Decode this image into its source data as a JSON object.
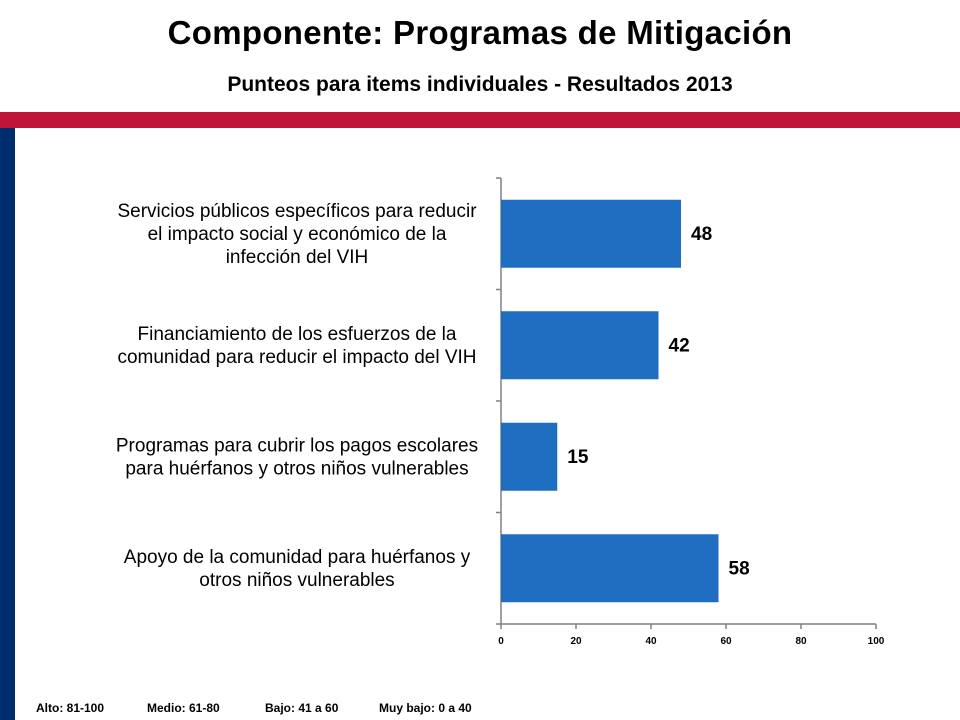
{
  "header": {
    "title": "Componente: Programas de Mitigación",
    "subtitle": "Punteos para items individuales - Resultados 2013"
  },
  "colors": {
    "accent_red": "#BE1538",
    "side_blue": "#002D6E",
    "bar_blue": "#1F6DC0"
  },
  "chart_data": {
    "type": "bar",
    "orientation": "horizontal",
    "categories": [
      "Servicios públicos específicos para reducir el impacto social y económico de la infección del VIH",
      "Financiamiento de los esfuerzos de la comunidad para reducir el impacto del VIH",
      "Programas para cubrir los pagos escolares para huérfanos y otros niños vulnerables",
      "Apoyo de la comunidad para huérfanos y otros niños vulnerables"
    ],
    "category_lines": [
      [
        "Servicios públicos específicos para reducir",
        "el impacto social y económico de la",
        "infección del VIH"
      ],
      [
        "Financiamiento de los esfuerzos de la",
        "comunidad para reducir el impacto del VIH"
      ],
      [
        "Programas para cubrir los pagos escolares",
        "para huérfanos y otros niños vulnerables"
      ],
      [
        "Apoyo de la comunidad para huérfanos y",
        "otros niños vulnerables"
      ]
    ],
    "values": [
      48,
      42,
      15,
      58
    ],
    "data_labels": [
      "48",
      "42",
      "15",
      "58"
    ],
    "xlim": [
      0,
      100
    ],
    "xticks": [
      "0",
      "20",
      "40",
      "60",
      "80",
      "100"
    ],
    "grid": false,
    "legend": false
  },
  "legend_scale": {
    "alto": "Alto:  81-100",
    "medio": "Medio:  61-80",
    "bajo": "Bajo:  41 a 60",
    "muy_bajo": "Muy bajo:  0 a 40"
  }
}
